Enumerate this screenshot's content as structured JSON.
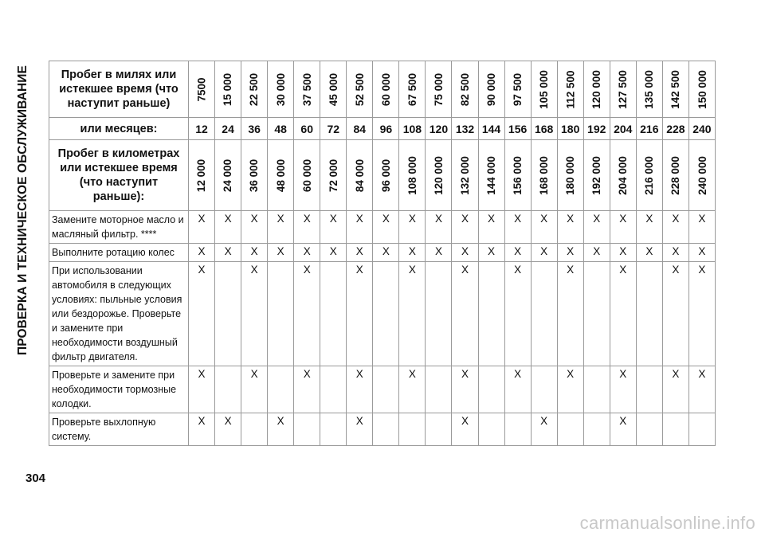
{
  "section_title": "ПРОВЕРКА И ТЕХНИЧЕСКОЕ ОБСЛУЖИВАНИЕ",
  "page_number": "304",
  "watermark": "carmanualsonline.info",
  "header": {
    "miles_label": "Пробег в милях или истекшее время (что наступит раньше)",
    "months_label": "или месяцев:",
    "km_label": "Пробег в километрах или истекшее время (что наступит раньше):"
  },
  "miles": [
    "7500",
    "15 000",
    "22 500",
    "30 000",
    "37 500",
    "45 000",
    "52 500",
    "60 000",
    "67 500",
    "75 000",
    "82 500",
    "90 000",
    "97 500",
    "105 000",
    "112 500",
    "120 000",
    "127 500",
    "135 000",
    "142 500",
    "150 000"
  ],
  "months": [
    "12",
    "24",
    "36",
    "48",
    "60",
    "72",
    "84",
    "96",
    "108",
    "120",
    "132",
    "144",
    "156",
    "168",
    "180",
    "192",
    "204",
    "216",
    "228",
    "240"
  ],
  "km": [
    "12 000",
    "24 000",
    "36 000",
    "48 000",
    "60 000",
    "72 000",
    "84 000",
    "96 000",
    "108 000",
    "120 000",
    "132 000",
    "144 000",
    "156 000",
    "168 000",
    "180 000",
    "192 000",
    "204 000",
    "216 000",
    "228 000",
    "240 000"
  ],
  "rows": [
    {
      "task": "Замените моторное масло и масляный фильтр. ****",
      "marks": [
        "X",
        "X",
        "X",
        "X",
        "X",
        "X",
        "X",
        "X",
        "X",
        "X",
        "X",
        "X",
        "X",
        "X",
        "X",
        "X",
        "X",
        "X",
        "X",
        "X"
      ]
    },
    {
      "task": "Выполните ротацию колес",
      "marks": [
        "X",
        "X",
        "X",
        "X",
        "X",
        "X",
        "X",
        "X",
        "X",
        "X",
        "X",
        "X",
        "X",
        "X",
        "X",
        "X",
        "X",
        "X",
        "X",
        "X"
      ]
    },
    {
      "task": "При использовании автомобиля в следующих условиях: пыльные условия или бездорожье. Проверьте и замените при необходимости воздушный фильтр двигателя.",
      "marks": [
        "X",
        "",
        "X",
        "",
        "X",
        "",
        "X",
        "",
        "X",
        "",
        "X",
        "",
        "X",
        "",
        "X",
        "",
        "X",
        "",
        "X",
        "X"
      ]
    },
    {
      "task": "Проверьте и замените при необходимости тормозные колодки.",
      "marks": [
        "X",
        "",
        "X",
        "",
        "X",
        "",
        "X",
        "",
        "X",
        "",
        "X",
        "",
        "X",
        "",
        "X",
        "",
        "X",
        "",
        "X",
        "X"
      ]
    },
    {
      "task": "Проверьте выхлопную систему.",
      "marks": [
        "X",
        "X",
        "",
        "X",
        "",
        "",
        "X",
        "",
        "",
        "",
        "X",
        "",
        "",
        "X",
        "",
        "",
        "X",
        "",
        "",
        ""
      ]
    }
  ]
}
